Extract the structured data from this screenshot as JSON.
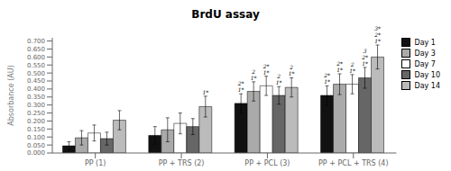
{
  "chart_data": {
    "type": "bar",
    "title": "BrdU assay",
    "ylabel": "Absorbance (AU)",
    "categories": [
      "PP (1)",
      "PP + TRS (2)",
      "PP + PCL (3)",
      "PP + PCL + TRS (4)"
    ],
    "series": [
      {
        "name": "Day 1",
        "color": "#111111",
        "values": [
          0.045,
          0.11,
          0.31,
          0.36
        ],
        "errors": [
          0.025,
          0.055,
          0.06,
          0.06
        ],
        "annotations": [
          [],
          [],
          [
            "2*",
            "1*"
          ],
          [
            "2*",
            "1*"
          ]
        ]
      },
      {
        "name": "Day 3",
        "color": "#aaaaaa",
        "values": [
          0.095,
          0.145,
          0.385,
          0.43
        ],
        "errors": [
          0.045,
          0.075,
          0.06,
          0.065
        ],
        "annotations": [
          [],
          [],
          [
            "2",
            "1*"
          ],
          [
            "2*",
            "1*"
          ]
        ]
      },
      {
        "name": "Day 7",
        "color": "#ffffff",
        "values": [
          0.125,
          0.185,
          0.42,
          0.43
        ],
        "errors": [
          0.05,
          0.065,
          0.06,
          0.06
        ],
        "annotations": [
          [],
          [],
          [
            "2*",
            "1*"
          ],
          [
            "2",
            "1*"
          ]
        ]
      },
      {
        "name": "Day 10",
        "color": "#666666",
        "values": [
          0.09,
          0.165,
          0.36,
          0.47
        ],
        "errors": [
          0.04,
          0.05,
          0.055,
          0.065
        ],
        "annotations": [
          [],
          [],
          [
            "2",
            "1*"
          ],
          [
            "3",
            "2*",
            "1*"
          ]
        ]
      },
      {
        "name": "Day 14",
        "color": "#bbbbbb",
        "values": [
          0.205,
          0.29,
          0.41,
          0.6
        ],
        "errors": [
          0.06,
          0.065,
          0.06,
          0.075
        ],
        "annotations": [
          [],
          [
            "1*"
          ],
          [
            "2",
            "1*"
          ],
          [
            "3*",
            "2*",
            "1*"
          ]
        ]
      }
    ],
    "ylim": [
      0.0,
      0.72
    ],
    "yticks": [
      {
        "value": 0.0,
        "label": "0.000"
      },
      {
        "value": 0.05,
        "label": "0.050"
      },
      {
        "value": 0.1,
        "label": "0.100"
      },
      {
        "value": 0.15,
        "label": "0.150"
      },
      {
        "value": 0.2,
        "label": "0.200"
      },
      {
        "value": 0.25,
        "label": "0.250"
      },
      {
        "value": 0.3,
        "label": "0.300"
      },
      {
        "value": 0.35,
        "label": "0.350"
      },
      {
        "value": 0.4,
        "label": "0.400"
      },
      {
        "value": 0.45,
        "label": "0.450"
      },
      {
        "value": 0.5,
        "label": "0.500"
      },
      {
        "value": 0.55,
        "label": "0.550"
      },
      {
        "value": 0.6,
        "label": "0.600"
      },
      {
        "value": 0.65,
        "label": "0.650"
      },
      {
        "value": 0.7,
        "label": "0.700"
      }
    ],
    "grid": false,
    "legend": "upper right"
  }
}
